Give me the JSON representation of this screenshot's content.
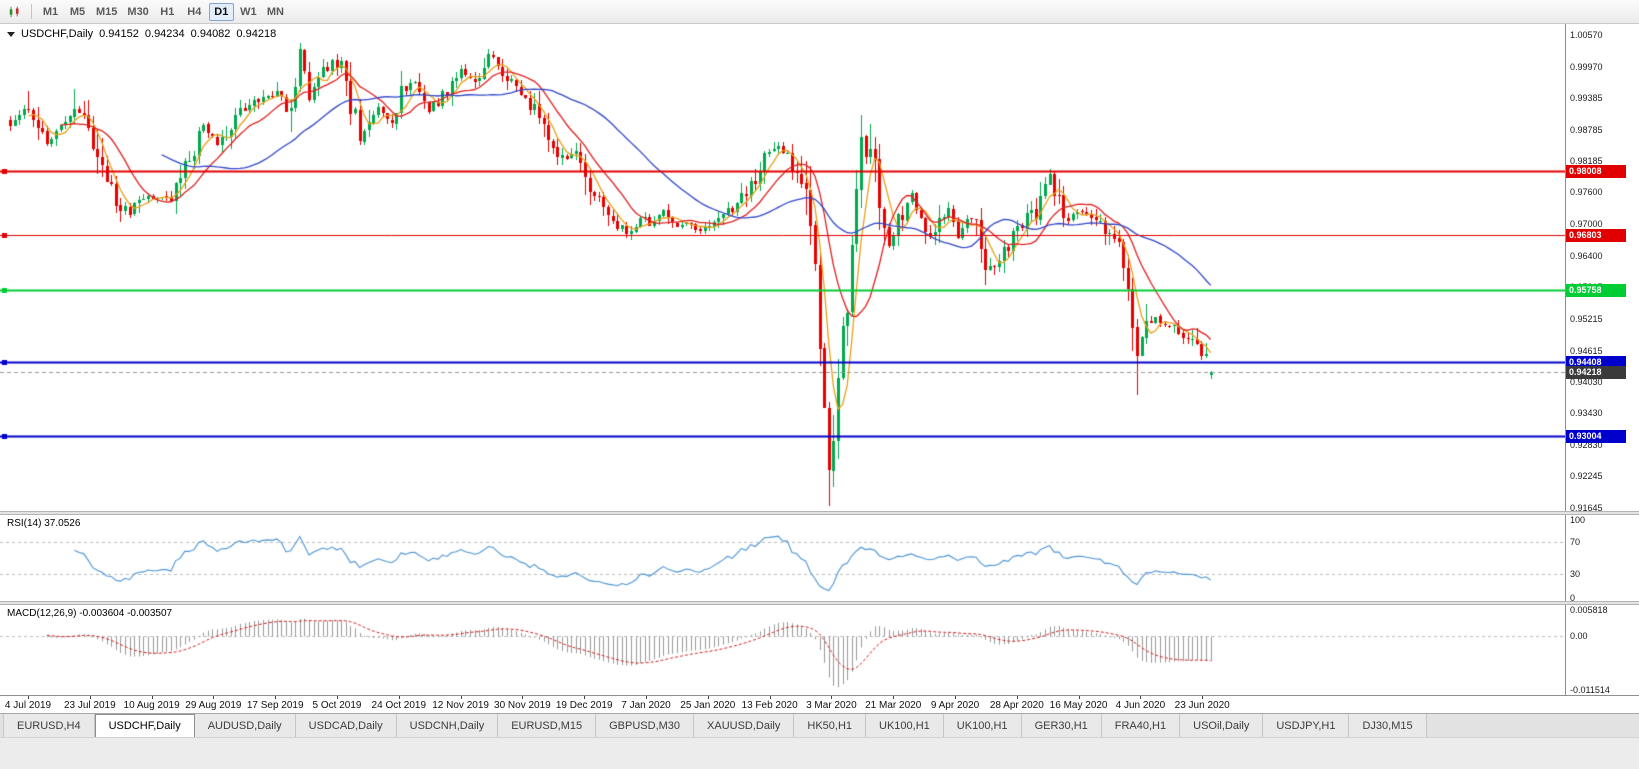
{
  "toolbar": {
    "timeframes": [
      "M1",
      "M5",
      "M15",
      "M30",
      "H1",
      "H4",
      "D1",
      "W1",
      "MN"
    ],
    "active_timeframe": "D1"
  },
  "chart": {
    "title": "USDCHF,Daily",
    "ohlc": {
      "open": "0.94152",
      "high": "0.94234",
      "low": "0.94082",
      "close": "0.94218"
    },
    "y_ticks": [
      "1.00570",
      "0.99970",
      "0.99385",
      "0.98785",
      "0.98185",
      "0.97600",
      "0.97000",
      "0.96400",
      "0.95815",
      "0.95215",
      "0.94615",
      "0.94030",
      "0.93430",
      "0.92830",
      "0.92245",
      "0.91645"
    ],
    "x_labels": [
      "4 Jul 2019",
      "23 Jul 2019",
      "10 Aug 2019",
      "29 Aug 2019",
      "17 Sep 2019",
      "5 Oct 2019",
      "24 Oct 2019",
      "12 Nov 2019",
      "30 Nov 2019",
      "19 Dec 2019",
      "7 Jan 2020",
      "25 Jan 2020",
      "13 Feb 2020",
      "3 Mar 2020",
      "21 Mar 2020",
      "9 Apr 2020",
      "28 Apr 2020",
      "16 May 2020",
      "4 Jun 2020",
      "23 Jun 2020"
    ],
    "levels": [
      {
        "label": "0.98008",
        "value": 0.98008,
        "color": "#e00000",
        "width": 2
      },
      {
        "label": "0.96803",
        "value": 0.96803,
        "color": "#e00000",
        "width": 1
      },
      {
        "label": "0.95758",
        "value": 0.95758,
        "color": "#00cc33",
        "width": 2
      },
      {
        "label": "0.94408",
        "value": 0.94408,
        "color": "#0000cc",
        "width": 2
      },
      {
        "label": "0.93004",
        "value": 0.93004,
        "color": "#0000cc",
        "width": 2
      }
    ],
    "current_price": {
      "label": "0.94218",
      "value": 0.94218,
      "bg": "#3a3a3a"
    }
  },
  "rsi": {
    "label": "RSI(14) 37.0526",
    "value": 37.0526,
    "ticks": [
      "100",
      "70",
      "30",
      "0"
    ],
    "levels": [
      70,
      30
    ]
  },
  "macd": {
    "label": "MACD(12,26,9) -0.003604 -0.003507",
    "macd_value": -0.003604,
    "signal_value": -0.003507,
    "ticks": [
      "0.005818",
      "0.00",
      "-0.011514"
    ],
    "range": {
      "top": 0.005818,
      "bottom": -0.011514
    }
  },
  "tabs": {
    "items": [
      "EURUSD,H4",
      "USDCHF,Daily",
      "AUDUSD,Daily",
      "USDCAD,Daily",
      "USDCNH,Daily",
      "EURUSD,M15",
      "GBPUSD,M30",
      "XAUUSD,Daily",
      "HK50,H1",
      "UK100,H1",
      "UK100,H1",
      "GER30,H1",
      "FRA40,H1",
      "USOil,Daily",
      "USDJPY,H1",
      "DJ30,M15"
    ],
    "active_index": 1
  },
  "chart_data": {
    "type": "candlestick",
    "symbol": "USDCHF",
    "timeframe": "Daily",
    "last_candle": {
      "open": 0.94152,
      "high": 0.94234,
      "low": 0.94082,
      "close": 0.94218
    },
    "candle_count": 262,
    "seed": 11,
    "close_anchors": [
      [
        0,
        0.9885
      ],
      [
        2,
        0.9905
      ],
      [
        4,
        0.9922
      ],
      [
        6,
        0.988
      ],
      [
        8,
        0.9856
      ],
      [
        10,
        0.9875
      ],
      [
        12,
        0.9882
      ],
      [
        14,
        0.9925
      ],
      [
        16,
        0.9898
      ],
      [
        18,
        0.986
      ],
      [
        20,
        0.9805
      ],
      [
        22,
        0.9762
      ],
      [
        24,
        0.9735
      ],
      [
        26,
        0.9718
      ],
      [
        28,
        0.9742
      ],
      [
        30,
        0.9756
      ],
      [
        32,
        0.9748
      ],
      [
        34,
        0.9746
      ],
      [
        36,
        0.9768
      ],
      [
        38,
        0.98
      ],
      [
        40,
        0.9848
      ],
      [
        42,
        0.989
      ],
      [
        44,
        0.9862
      ],
      [
        45,
        0.9845
      ],
      [
        47,
        0.9878
      ],
      [
        50,
        0.9915
      ],
      [
        53,
        0.9928
      ],
      [
        55,
        0.994
      ],
      [
        58,
        0.995
      ],
      [
        60,
        0.9915
      ],
      [
        61,
        0.99
      ],
      [
        63,
        1.003
      ],
      [
        65,
        0.995
      ],
      [
        67,
        0.9975
      ],
      [
        70,
        1.0005
      ],
      [
        72,
        0.999
      ],
      [
        74,
        0.993
      ],
      [
        76,
        0.9865
      ],
      [
        78,
        0.9885
      ],
      [
        80,
        0.9915
      ],
      [
        83,
        0.9892
      ],
      [
        85,
        0.9945
      ],
      [
        87,
        0.9965
      ],
      [
        89,
        0.9958
      ],
      [
        91,
        0.9922
      ],
      [
        93,
        0.9932
      ],
      [
        96,
        0.9962
      ],
      [
        98,
        0.999
      ],
      [
        101,
        0.9966
      ],
      [
        104,
        1.002
      ],
      [
        107,
        0.9992
      ],
      [
        109,
        0.9962
      ],
      [
        112,
        0.9945
      ],
      [
        114,
        0.991
      ],
      [
        116,
        0.988
      ],
      [
        119,
        0.9838
      ],
      [
        121,
        0.9822
      ],
      [
        123,
        0.9842
      ],
      [
        125,
        0.9792
      ],
      [
        128,
        0.9742
      ],
      [
        130,
        0.9726
      ],
      [
        133,
        0.9692
      ],
      [
        135,
        0.9682
      ],
      [
        137,
        0.9716
      ],
      [
        139,
        0.97
      ],
      [
        142,
        0.9722
      ],
      [
        145,
        0.9696
      ],
      [
        148,
        0.9702
      ],
      [
        150,
        0.9686
      ],
      [
        152,
        0.9692
      ],
      [
        155,
        0.9716
      ],
      [
        157,
        0.9732
      ],
      [
        159,
        0.9752
      ],
      [
        161,
        0.9776
      ],
      [
        163,
        0.9802
      ],
      [
        165,
        0.9836
      ],
      [
        167,
        0.9846
      ],
      [
        169,
        0.9822
      ],
      [
        171,
        0.98
      ],
      [
        173,
        0.9762
      ],
      [
        174,
        0.97
      ],
      [
        175,
        0.961
      ],
      [
        176,
        0.9455
      ],
      [
        177,
        0.935
      ],
      [
        178,
        0.9232
      ],
      [
        179,
        0.931
      ],
      [
        180,
        0.9425
      ],
      [
        181,
        0.9482
      ],
      [
        182,
        0.956
      ],
      [
        183,
        0.965
      ],
      [
        184,
        0.9755
      ],
      [
        185,
        0.9878
      ],
      [
        186,
        0.984
      ],
      [
        188,
        0.9802
      ],
      [
        190,
        0.9705
      ],
      [
        191,
        0.9655
      ],
      [
        193,
        0.9702
      ],
      [
        196,
        0.9762
      ],
      [
        198,
        0.9722
      ],
      [
        199,
        0.9672
      ],
      [
        202,
        0.9702
      ],
      [
        204,
        0.9736
      ],
      [
        206,
        0.9682
      ],
      [
        209,
        0.9722
      ],
      [
        212,
        0.9618
      ],
      [
        215,
        0.9628
      ],
      [
        217,
        0.9666
      ],
      [
        219,
        0.9692
      ],
      [
        221,
        0.9716
      ],
      [
        223,
        0.9722
      ],
      [
        226,
        0.9792
      ],
      [
        228,
        0.9742
      ],
      [
        229,
        0.9702
      ],
      [
        231,
        0.9716
      ],
      [
        233,
        0.9726
      ],
      [
        236,
        0.9712
      ],
      [
        239,
        0.9682
      ],
      [
        241,
        0.9652
      ],
      [
        243,
        0.9602
      ],
      [
        245,
        0.9432
      ],
      [
        246,
        0.9482
      ],
      [
        247,
        0.9512
      ],
      [
        249,
        0.9522
      ],
      [
        251,
        0.9506
      ],
      [
        253,
        0.9516
      ],
      [
        255,
        0.9492
      ],
      [
        257,
        0.9476
      ],
      [
        259,
        0.9466
      ],
      [
        260,
        0.9442
      ],
      [
        261,
        0.94218
      ]
    ],
    "wick_high_overrides": {
      "4": 0.9952,
      "14": 0.9956,
      "63": 1.0042,
      "104": 1.003,
      "185": 0.9906
    },
    "wick_low_overrides": {
      "26": 0.9712,
      "178": 0.9168,
      "245": 0.9378
    },
    "indicators": {
      "rsi": {
        "period": 14,
        "value": 37.0526,
        "levels": [
          70,
          30
        ]
      },
      "macd": {
        "fast": 12,
        "slow": 26,
        "signal": 9,
        "macd_value": -0.003604,
        "signal_value": -0.003507
      },
      "moving_averages": [
        {
          "period": 5,
          "color": "#e8a018"
        },
        {
          "period": 12,
          "color": "#e02020"
        },
        {
          "period": 34,
          "color": "#3148c8"
        }
      ]
    },
    "colors": {
      "up": "#00a84e",
      "down": "#e60000",
      "rsi": "#4d94d6",
      "macd_hist": "#9a9a9a",
      "macd_signal": "#d02020",
      "dash": "#bdbdbd",
      "bid_line": "#9a9a9a"
    }
  }
}
